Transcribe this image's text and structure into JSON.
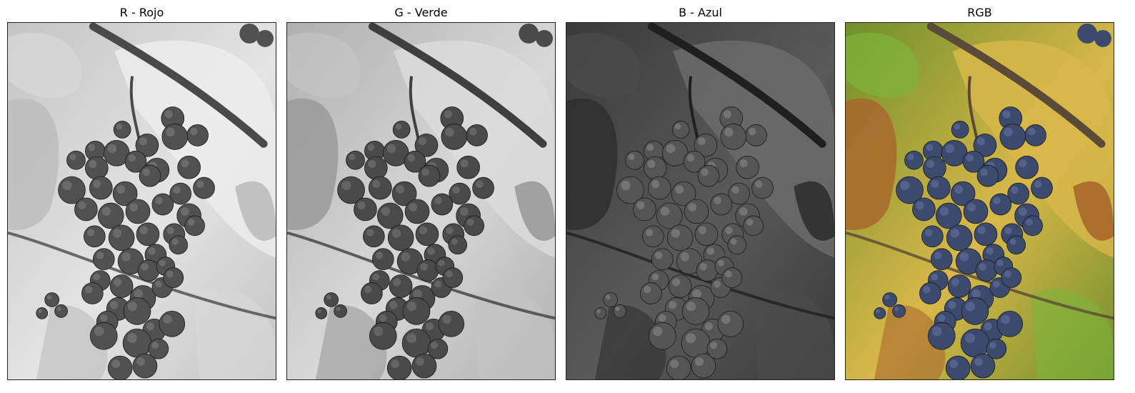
{
  "panels": [
    {
      "title": "R - Rojo",
      "variant": "red-channel"
    },
    {
      "title": "G - Verde",
      "variant": "green-channel"
    },
    {
      "title": "B - Azul",
      "variant": "blue-channel"
    },
    {
      "title": "RGB",
      "variant": "color"
    }
  ],
  "colors": {
    "grape_color": "#3c4a6e",
    "leaf_yellow": "#d9b84a",
    "leaf_green": "#7fb43a",
    "leaf_brown": "#a8672e",
    "vine_color": "#5a4a38"
  }
}
